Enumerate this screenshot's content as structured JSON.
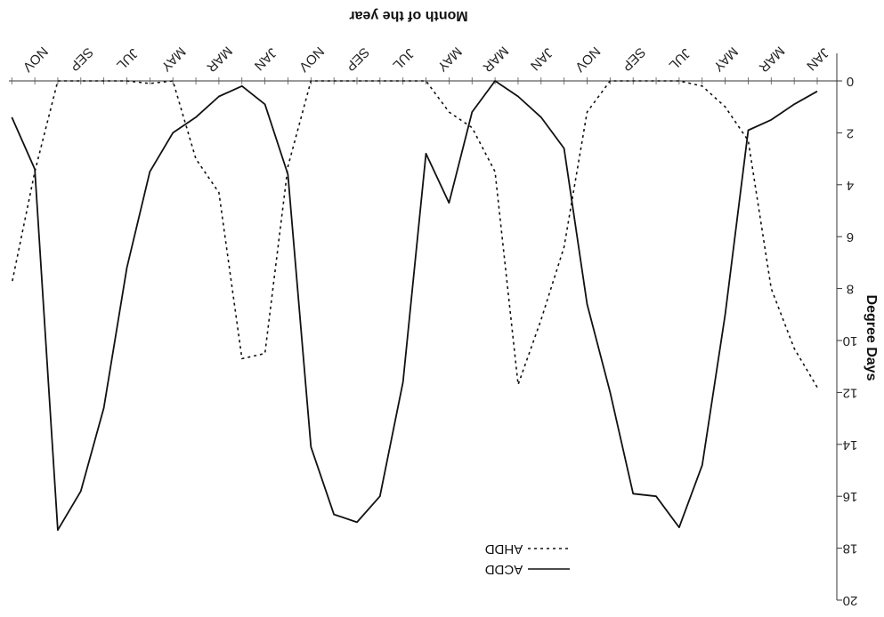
{
  "chart_data": {
    "type": "line",
    "orientation": "rotated-180",
    "title": "",
    "xlabel": "Month of the year",
    "ylabel": "Degree Days",
    "ylim": [
      0,
      20
    ],
    "y_ticks": [
      "0",
      "2",
      "4",
      "6",
      "8",
      "10",
      "12",
      "14",
      "16",
      "18",
      "20"
    ],
    "x_tick_labels": [
      "JAN",
      "MAR",
      "MAY",
      "JUL",
      "SEP",
      "NOV",
      "JAN",
      "MAR",
      "MAY",
      "JUL",
      "SEP",
      "NOV",
      "JAN",
      "MAR",
      "MAY",
      "JUL",
      "SEP",
      "NOV"
    ],
    "x_tick_positions": [
      0,
      2,
      4,
      6,
      8,
      10,
      12,
      14,
      16,
      18,
      20,
      22,
      24,
      26,
      28,
      30,
      32,
      34
    ],
    "x_range": [
      0,
      35.5
    ],
    "legend_position": "bottom-center",
    "series": [
      {
        "name": "ACDD",
        "style": "solid",
        "color": "#111111",
        "x": [
          0,
          1,
          2,
          3,
          4,
          5,
          6,
          7,
          8,
          9,
          10,
          11,
          12,
          13,
          14,
          15,
          16,
          17,
          18,
          19,
          20,
          21,
          22,
          23,
          24,
          25,
          26,
          27,
          28,
          29,
          30,
          31,
          32,
          33,
          34,
          35
        ],
        "values": [
          0.4,
          0.9,
          1.5,
          1.9,
          9.0,
          14.8,
          17.2,
          16.0,
          15.9,
          12.0,
          8.6,
          2.6,
          1.4,
          0.6,
          0.0,
          1.2,
          4.7,
          2.8,
          11.6,
          16.0,
          17.0,
          16.7,
          14.1,
          3.6,
          0.9,
          0.2,
          0.6,
          1.4,
          2.0,
          3.5,
          7.2,
          12.6,
          15.8,
          17.3,
          3.4,
          1.4
        ]
      },
      {
        "name": "AHDD",
        "style": "dashed",
        "color": "#111111",
        "x": [
          0,
          1,
          2,
          3,
          4,
          5,
          6,
          7,
          8,
          9,
          10,
          11,
          12,
          13,
          14,
          15,
          16,
          17,
          18,
          19,
          20,
          21,
          22,
          23,
          24,
          25,
          26,
          27,
          28,
          29,
          30,
          31,
          32,
          33,
          34,
          35
        ],
        "values": [
          11.8,
          10.3,
          8.0,
          2.3,
          1.0,
          0.2,
          0.0,
          0.0,
          0.0,
          0.0,
          1.2,
          6.4,
          9.2,
          11.7,
          3.5,
          1.8,
          1.2,
          0.0,
          0.0,
          0.0,
          0.0,
          0.0,
          0.0,
          3.3,
          10.5,
          10.7,
          4.3,
          3.0,
          0.0,
          0.1,
          0.0,
          0.0,
          0.0,
          0.0,
          3.5,
          7.8
        ]
      }
    ]
  }
}
